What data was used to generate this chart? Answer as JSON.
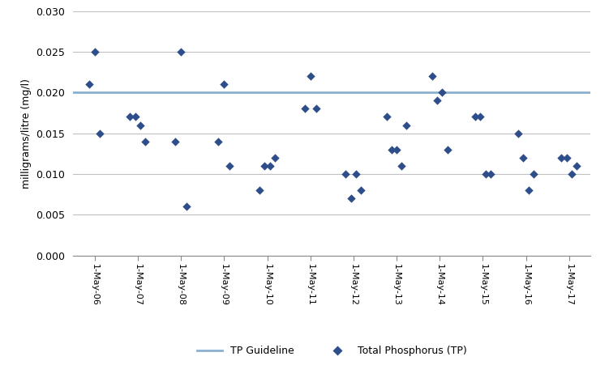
{
  "title": "",
  "ylabel": "milligrams/litre (mg/l)",
  "guideline_value": 0.02,
  "guideline_color": "#8ab0d0",
  "guideline_label": "TP Guideline",
  "marker_color": "#2E4D8B",
  "marker_label": "Total Phosphorus (TP)",
  "ylim": [
    0.0,
    0.03
  ],
  "yticks": [
    0.0,
    0.005,
    0.01,
    0.015,
    0.02,
    0.025,
    0.03
  ],
  "x_labels": [
    "1-May-06",
    "1-May-07",
    "1-May-08",
    "1-May-09",
    "1-May-10",
    "1-May-11",
    "1-May-12",
    "1-May-13",
    "1-May-14",
    "1-May-15",
    "1-May-16",
    "1-May-17"
  ],
  "data_x": [
    0,
    0,
    0,
    1,
    1,
    1,
    1,
    2,
    2,
    2,
    3,
    3,
    3,
    4,
    4,
    4,
    4,
    5,
    5,
    5,
    6,
    6,
    6,
    6,
    7,
    7,
    7,
    7,
    7,
    8,
    8,
    8,
    8,
    9,
    9,
    9,
    9,
    10,
    10,
    10,
    10,
    11,
    11,
    11,
    11
  ],
  "data_x_offset": [
    0.0,
    -0.12,
    0.12,
    -0.18,
    -0.06,
    0.06,
    0.18,
    0.0,
    -0.13,
    0.13,
    0.0,
    -0.13,
    0.13,
    -0.18,
    -0.06,
    0.06,
    0.18,
    0.0,
    -0.13,
    0.13,
    -0.18,
    -0.06,
    0.06,
    0.18,
    -0.22,
    -0.11,
    0.0,
    0.11,
    0.22,
    -0.18,
    -0.06,
    0.06,
    0.18,
    -0.18,
    -0.06,
    0.06,
    0.18,
    -0.18,
    -0.06,
    0.06,
    0.18,
    -0.18,
    -0.06,
    0.06,
    0.18
  ],
  "data_y": [
    0.025,
    0.021,
    0.015,
    0.017,
    0.017,
    0.016,
    0.014,
    0.025,
    0.014,
    0.006,
    0.021,
    0.014,
    0.011,
    0.008,
    0.011,
    0.011,
    0.012,
    0.022,
    0.018,
    0.018,
    0.01,
    0.007,
    0.01,
    0.008,
    0.017,
    0.013,
    0.013,
    0.011,
    0.016,
    0.022,
    0.019,
    0.02,
    0.013,
    0.017,
    0.017,
    0.01,
    0.01,
    0.015,
    0.012,
    0.008,
    0.01,
    0.012,
    0.012,
    0.01,
    0.011
  ],
  "background_color": "#ffffff",
  "grid_color": "#c0c0c0",
  "border_color": "#888888"
}
